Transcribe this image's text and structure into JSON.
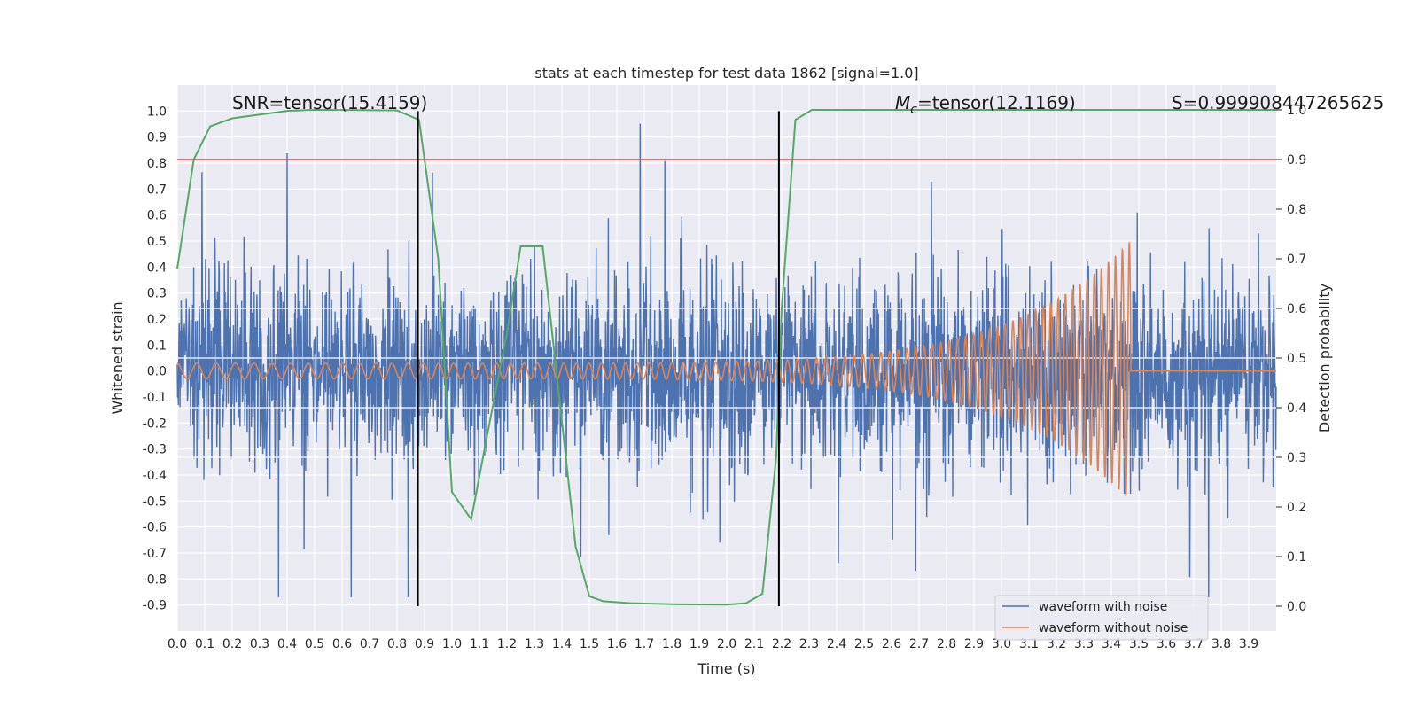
{
  "chart_data": {
    "type": "line",
    "title": "stats at each timestep for test data 1862 [signal=1.0]",
    "xlabel": "Time (s)",
    "ylabel": "Whitened strain",
    "y2label": "Detection probability",
    "xlim": [
      0.0,
      4.0
    ],
    "ylim": [
      -1.0,
      1.1
    ],
    "y2lim": [
      -0.05,
      1.05
    ],
    "xticks": [
      "0.0",
      "0.1",
      "0.2",
      "0.3",
      "0.4",
      "0.5",
      "0.6",
      "0.7",
      "0.8",
      "0.9",
      "1.0",
      "1.1",
      "1.2",
      "1.3",
      "1.4",
      "1.5",
      "1.6",
      "1.7",
      "1.8",
      "1.9",
      "2.0",
      "2.1",
      "2.2",
      "2.3",
      "2.4",
      "2.5",
      "2.6",
      "2.7",
      "2.8",
      "2.9",
      "3.0",
      "3.1",
      "3.2",
      "3.3",
      "3.4",
      "3.5",
      "3.6",
      "3.7",
      "3.8",
      "3.9"
    ],
    "yticks": [
      "1.0",
      "0.9",
      "0.8",
      "0.7",
      "0.6",
      "0.5",
      "0.4",
      "0.3",
      "0.2",
      "0.1",
      "0.0",
      "-0.1",
      "-0.2",
      "-0.3",
      "-0.4",
      "-0.5",
      "-0.6",
      "-0.7",
      "-0.8",
      "-0.9"
    ],
    "y2ticks": [
      "1.0",
      "0.9",
      "0.8",
      "0.7",
      "0.6",
      "0.5",
      "0.4",
      "0.3",
      "0.2",
      "0.1",
      "0.0"
    ],
    "annotations": {
      "snr": "SNR=tensor(15.4159)",
      "mc_symbol": "M",
      "mc_sub": "c",
      "mc_value": "=tensor(12.1169)",
      "s": "S=0.999908447265625"
    },
    "legend": [
      {
        "label": "waveform with noise",
        "color": "#4c72b0"
      },
      {
        "label": "waveform without noise",
        "color": "#dd8452"
      }
    ],
    "legend_position": "lower-right",
    "series": [
      {
        "name": "waveform with noise",
        "color": "#4c72b0",
        "kind": "noise",
        "t_start": 0.0,
        "t_end": 4.0,
        "typical_amplitude": 0.3,
        "max": 1.0,
        "min": -0.87
      },
      {
        "name": "waveform without noise",
        "color": "#dd8452",
        "kind": "chirp",
        "t_start": 0.0,
        "t_merger": 3.47,
        "t_end": 4.0,
        "start_amplitude": 0.03,
        "peak_amplitude": 0.5,
        "start_freq_hz": 14,
        "end_freq_hz": 40,
        "post_merger_value": 0.0
      },
      {
        "name": "detection probability",
        "color": "#55a868",
        "axis": "right",
        "x": [
          0.0,
          0.06,
          0.12,
          0.2,
          0.4,
          0.5,
          0.8,
          0.88,
          0.95,
          1.0,
          1.07,
          1.13,
          1.2,
          1.25,
          1.33,
          1.45,
          1.5,
          1.55,
          1.65,
          1.8,
          2.0,
          2.07,
          2.13,
          2.18,
          2.2,
          2.25,
          2.31,
          2.4,
          4.0
        ],
        "y": [
          0.68,
          0.9,
          0.967,
          0.983,
          0.998,
          1.0,
          0.999,
          0.98,
          0.7,
          0.23,
          0.175,
          0.35,
          0.55,
          0.725,
          0.725,
          0.12,
          0.02,
          0.01,
          0.006,
          0.004,
          0.003,
          0.006,
          0.025,
          0.3,
          0.6,
          0.98,
          1.0,
          1.0,
          1.0
        ]
      },
      {
        "name": "threshold",
        "color": "#c44e52",
        "axis": "right",
        "value": 0.9
      },
      {
        "name": "marker-1",
        "color": "#000000",
        "x": 0.876
      },
      {
        "name": "marker-2",
        "color": "#000000",
        "x": 2.19
      }
    ]
  }
}
